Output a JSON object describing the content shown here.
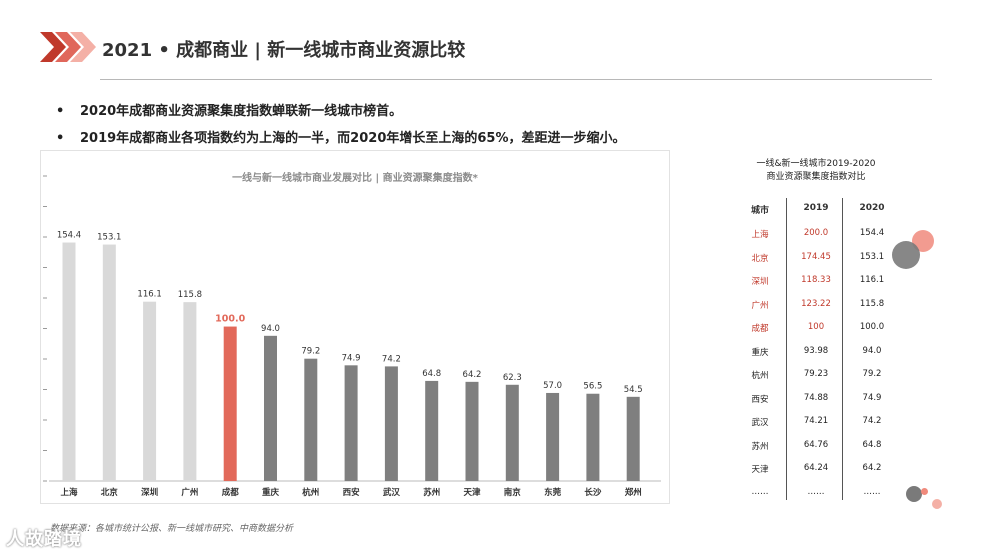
{
  "page": {
    "title": "2021 • 成都商业 | 新一线城市商业资源比较",
    "bullets": [
      "2020年成都商业资源聚集度指数蝉联新一线城市榜首。",
      "2019年成都商业各项指数约为上海的一半，而2020年增长至上海的65%，差距进一步缩小。"
    ],
    "bullet_marker": "•",
    "source": "数据来源：各城市统计公报、新一线城市研究、中商数据分析",
    "watermark": "人故踏境"
  },
  "chart_data": {
    "type": "bar",
    "title": "一线与新一线城市商业发展对比 | 商业资源聚集度指数*",
    "categories": [
      "上海",
      "北京",
      "深圳",
      "广州",
      "成都",
      "重庆",
      "杭州",
      "西安",
      "武汉",
      "苏州",
      "天津",
      "南京",
      "东莞",
      "长沙",
      "郑州"
    ],
    "values": [
      154.4,
      153.1,
      116.1,
      115.8,
      100.0,
      94.0,
      79.2,
      74.9,
      74.2,
      64.8,
      64.2,
      62.3,
      57.0,
      56.5,
      54.5
    ],
    "value_labels": [
      "154.4",
      "153.1",
      "116.1",
      "115.8",
      "100.0",
      "94.0",
      "79.2",
      "74.9",
      "74.2",
      "64.8",
      "64.2",
      "62.3",
      "57.0",
      "56.5",
      "54.5"
    ],
    "ylim": [
      0,
      180
    ],
    "grid": false,
    "colors": {
      "first_tier": "#d9d9d9",
      "highlight": "#e2695a",
      "others": "#7f7f7f"
    },
    "first_tier_count": 4,
    "highlight_index": 4
  },
  "table": {
    "title_line1": "一线&新一线城市2019-2020",
    "title_line2": "商业资源聚集度指数对比",
    "headers": [
      "城市",
      "2019",
      "2020"
    ],
    "rows": [
      {
        "city": "上海",
        "v2019": "200.0",
        "v2020": "154.4",
        "red": true
      },
      {
        "city": "北京",
        "v2019": "174.45",
        "v2020": "153.1",
        "red": true
      },
      {
        "city": "深圳",
        "v2019": "118.33",
        "v2020": "116.1",
        "red": true
      },
      {
        "city": "广州",
        "v2019": "123.22",
        "v2020": "115.8",
        "red": true
      },
      {
        "city": "成都",
        "v2019": "100",
        "v2020": "100.0",
        "red": true
      },
      {
        "city": "重庆",
        "v2019": "93.98",
        "v2020": "94.0",
        "red": false
      },
      {
        "city": "杭州",
        "v2019": "79.23",
        "v2020": "79.2",
        "red": false
      },
      {
        "city": "西安",
        "v2019": "74.88",
        "v2020": "74.9",
        "red": false
      },
      {
        "city": "武汉",
        "v2019": "74.21",
        "v2020": "74.2",
        "red": false
      },
      {
        "city": "苏州",
        "v2019": "64.76",
        "v2020": "64.8",
        "red": false
      },
      {
        "city": "天津",
        "v2019": "64.24",
        "v2020": "64.2",
        "red": false
      },
      {
        "city": "……",
        "v2019": "……",
        "v2020": "……",
        "red": false
      }
    ]
  },
  "colors": {
    "accent_red": "#c0392b",
    "chevron_red": "#d9574d",
    "deco_gray": "#7a7a7a",
    "deco_pink": "#f08a7c"
  }
}
